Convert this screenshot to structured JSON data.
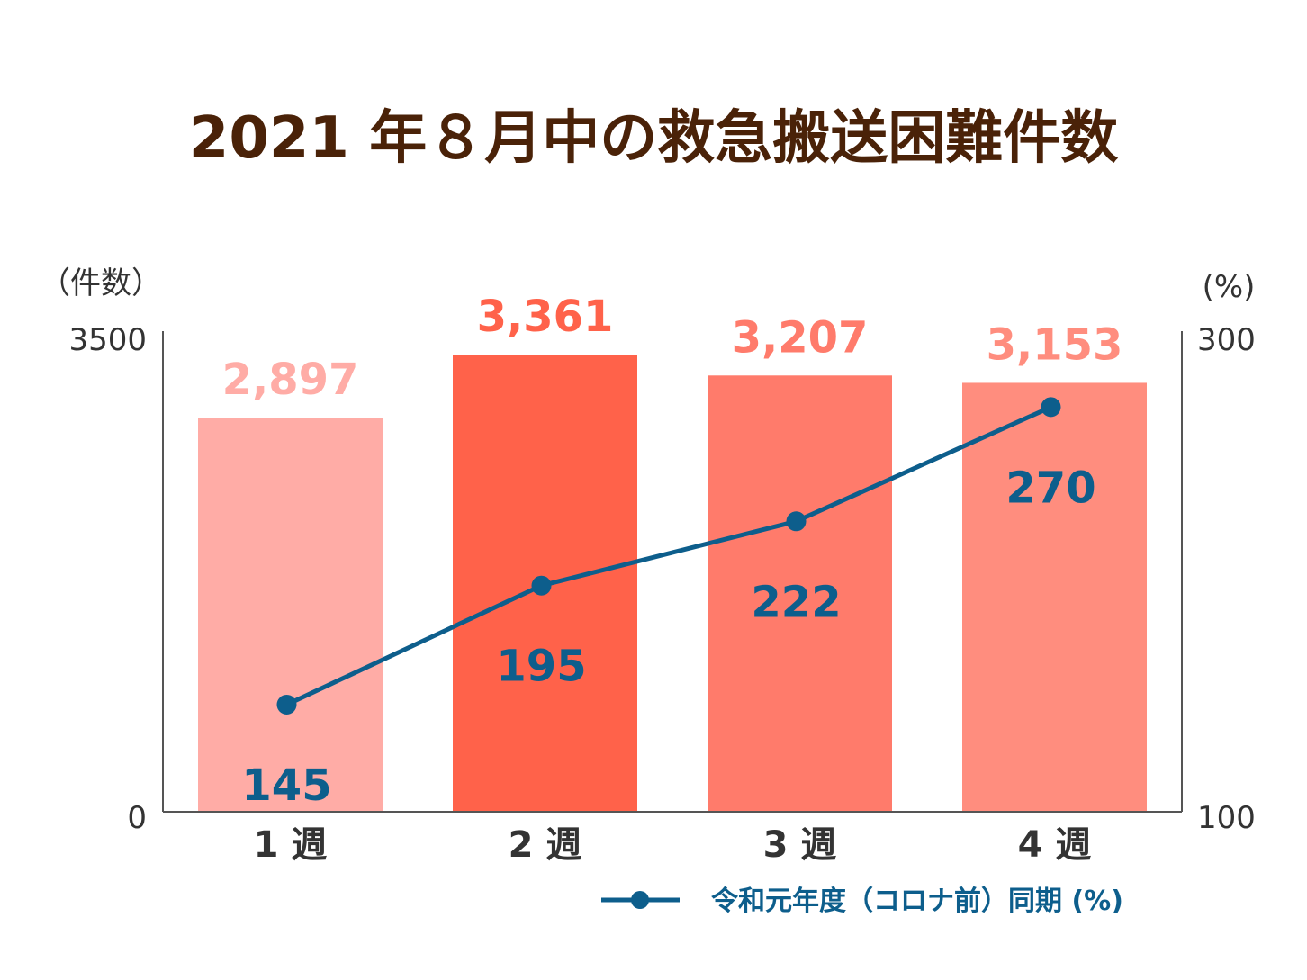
{
  "chart_data": {
    "type": "bar",
    "title": "2021 年８月中の救急搬送困難件数",
    "categories": [
      "1 週",
      "2 週",
      "3 週",
      "4 週"
    ],
    "series": [
      {
        "name": "件数",
        "type": "bar",
        "values": [
          2897,
          3361,
          3207,
          3153
        ],
        "value_labels": [
          "2,897",
          "3,361",
          "3,207",
          "3,153"
        ],
        "colors": [
          "#ffaca6",
          "#ff624a",
          "#ff7b6b",
          "#ff8d7e"
        ],
        "axis": "left"
      },
      {
        "name": "令和元年度（コロナ前）同期 (%)",
        "type": "line",
        "values": [
          145,
          195,
          222,
          270
        ],
        "value_labels": [
          "145",
          "195",
          "222",
          "270"
        ],
        "color": "#0d5e8c",
        "axis": "right"
      }
    ],
    "y_left": {
      "label": "（件数）",
      "ylim": [
        0,
        3500
      ],
      "ticks": [
        "3500",
        "0"
      ]
    },
    "y_right": {
      "label": "(%)",
      "ylim": [
        100,
        300
      ],
      "ticks": [
        "300",
        "100"
      ]
    },
    "legend": {
      "position": "bottom-right",
      "label": "令和元年度（コロナ前）同期 (%)"
    }
  }
}
